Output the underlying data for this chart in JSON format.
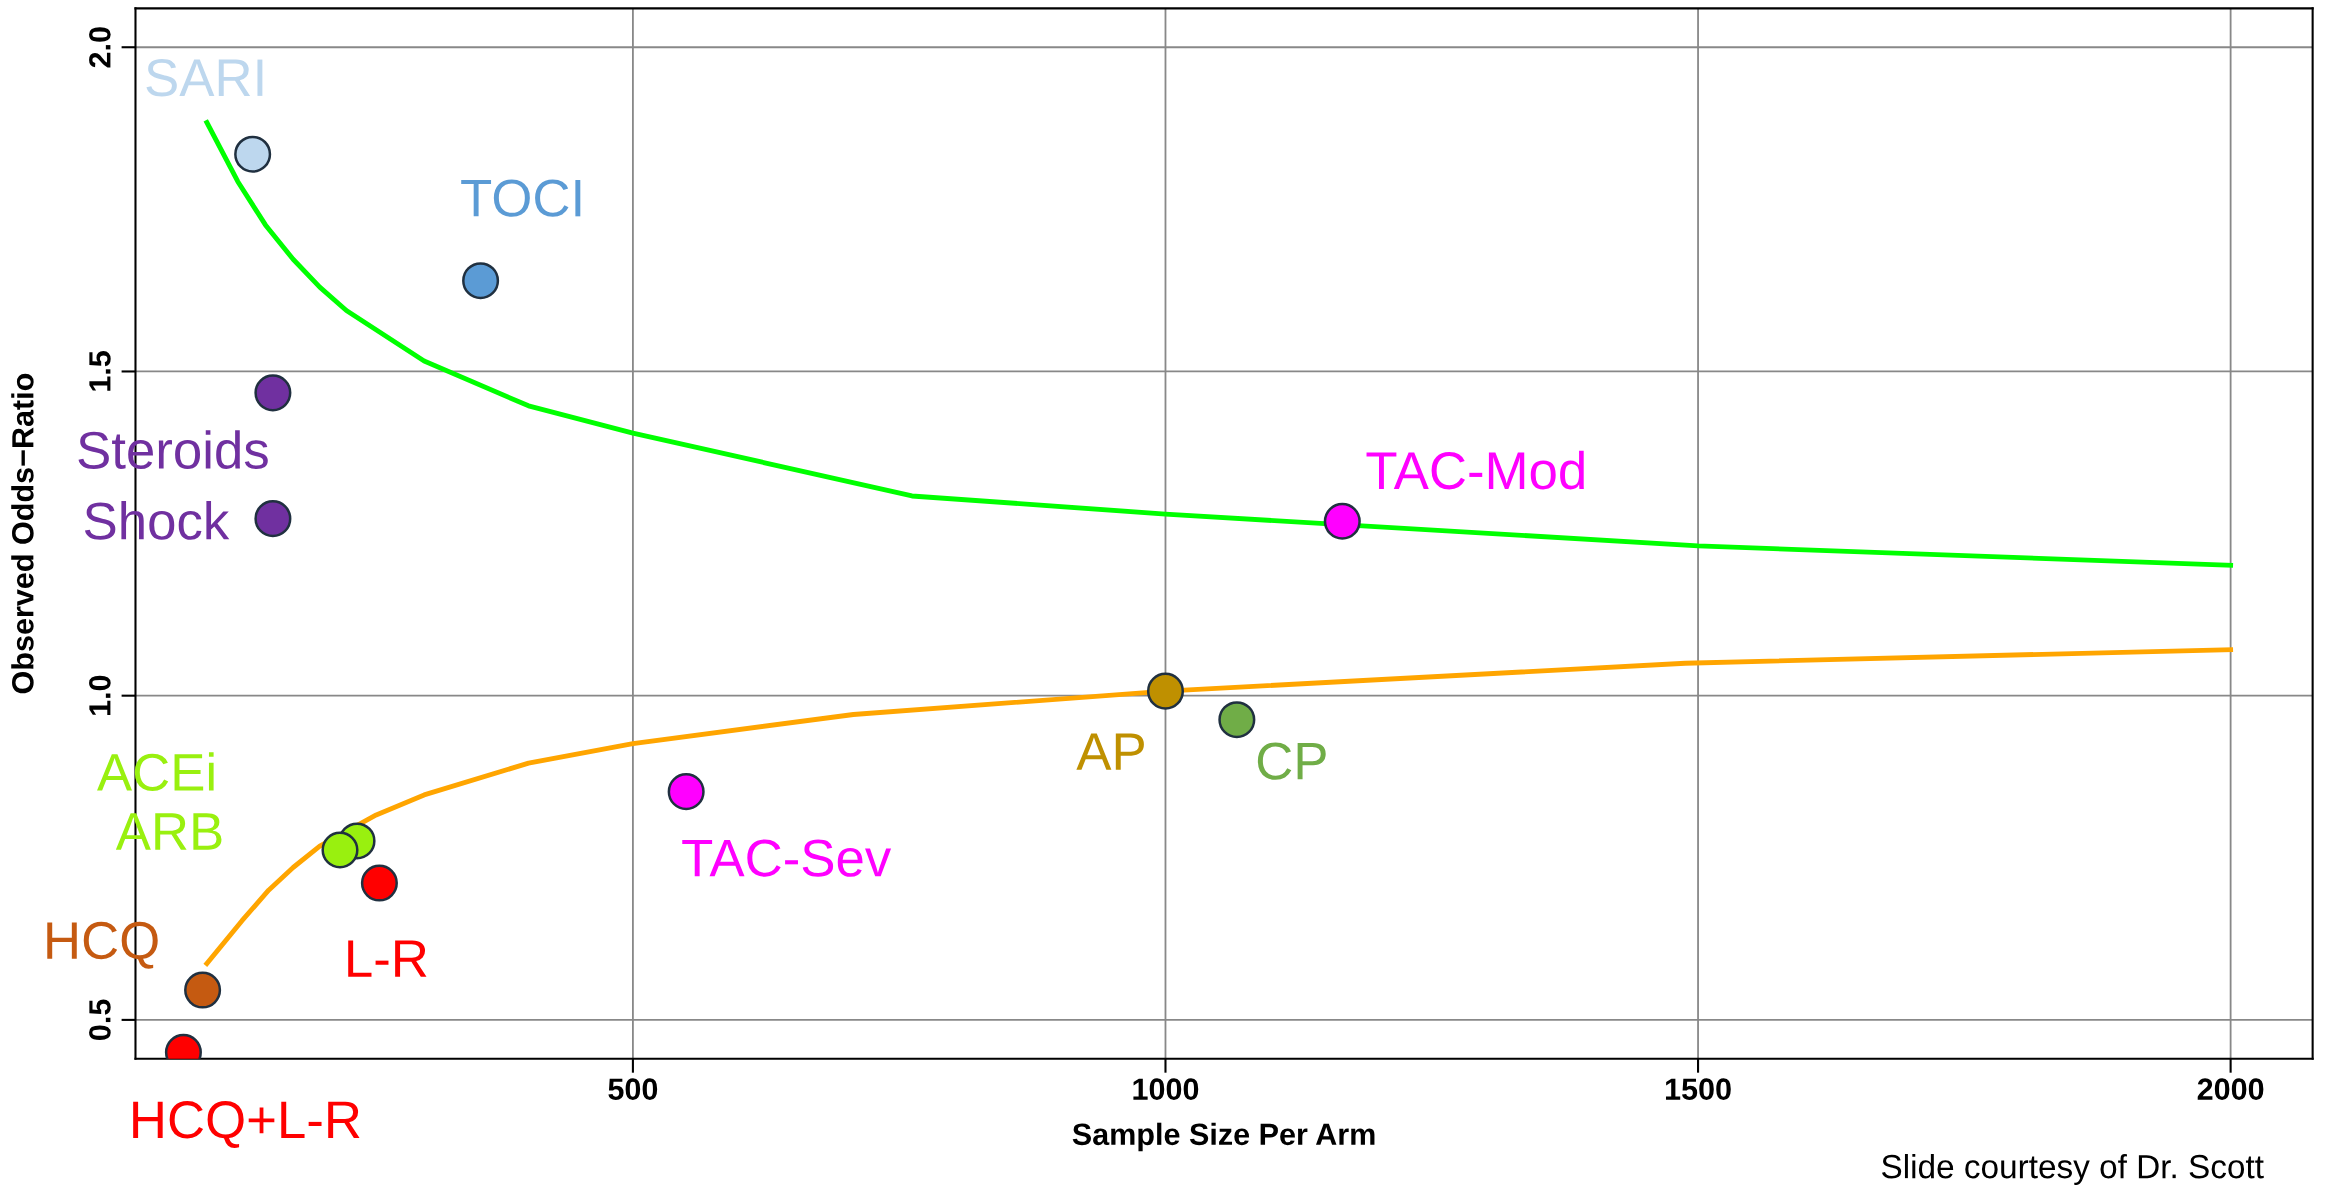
{
  "chart_data": {
    "type": "scatter",
    "xlabel": "Sample Size Per Arm",
    "ylabel": "Observed Odds−Ratio",
    "xlim": [
      33,
      2077
    ],
    "ylim": [
      0.44,
      2.06
    ],
    "xticks": [
      500,
      1000,
      1500,
      2000
    ],
    "yticks": [
      0.5,
      {
        "value": 1,
        "label": "1.0"
      },
      1.5,
      {
        "value": 2,
        "label": "2.0"
      }
    ],
    "grid": true,
    "marker": "circle",
    "series": [
      {
        "type": "line",
        "marker": "none",
        "color": "#00ff00",
        "x": [
          100,
          129,
          155,
          181,
          206,
          231,
          304,
          402,
          500,
          762,
          1000,
          1500,
          2000
        ],
        "values": [
          1.884,
          1.793,
          1.726,
          1.673,
          1.63,
          1.594,
          1.516,
          1.447,
          1.405,
          1.308,
          1.28,
          1.231,
          1.201
        ]
      },
      {
        "type": "line",
        "marker": "none",
        "color": "#ffa500",
        "x": [
          100,
          133,
          158,
          181,
          206,
          259,
          304,
          402,
          500,
          707,
          1000,
          1488,
          2000
        ],
        "values": [
          0.587,
          0.653,
          0.7,
          0.735,
          0.768,
          0.816,
          0.847,
          0.896,
          0.926,
          0.971,
          1.007,
          1.05,
          1.071
        ]
      },
      {
        "name": "SARI",
        "color": "#bdd7ee",
        "x": [
          143
        ],
        "values": [
          1.835
        ]
      },
      {
        "name": "TOCI",
        "color": "#5b9bd5",
        "x": [
          357
        ],
        "values": [
          1.64
        ]
      },
      {
        "name": "Steroids",
        "color": "#7030a0",
        "x": [
          162
        ],
        "values": [
          1.467
        ]
      },
      {
        "name": "Shock",
        "color": "#7030a0",
        "x": [
          162
        ],
        "values": [
          1.273
        ]
      },
      {
        "name": "ACEi",
        "color": "#99f00f",
        "x": [
          241
        ],
        "values": [
          0.776
        ]
      },
      {
        "name": "ARB",
        "color": "#99f00f",
        "x": [
          225
        ],
        "values": [
          0.762
        ]
      },
      {
        "name": "L-R",
        "color": "#ff0000",
        "x": [
          262
        ],
        "values": [
          0.711
        ]
      },
      {
        "name": "HCQ",
        "color": "#c55a11",
        "x": [
          96
        ],
        "values": [
          0.546
        ]
      },
      {
        "name": "HCQ+L-R",
        "color": "#ff0000",
        "x": [
          78
        ],
        "values": [
          0.45
        ]
      },
      {
        "name": "TAC-Sev",
        "color": "#ff00ff",
        "x": [
          550
        ],
        "values": [
          0.852
        ]
      },
      {
        "name": "AP",
        "color": "#bf9000",
        "x": [
          1000
        ],
        "values": [
          1.007
        ]
      },
      {
        "name": "CP",
        "color": "#70ad47",
        "x": [
          1067
        ],
        "values": [
          0.963
        ]
      },
      {
        "name": "TAC-Mod",
        "color": "#ff00ff",
        "x": [
          1166
        ],
        "values": [
          1.269
        ]
      }
    ],
    "annotations": [
      "Slide courtesy of Dr. Scott"
    ]
  }
}
